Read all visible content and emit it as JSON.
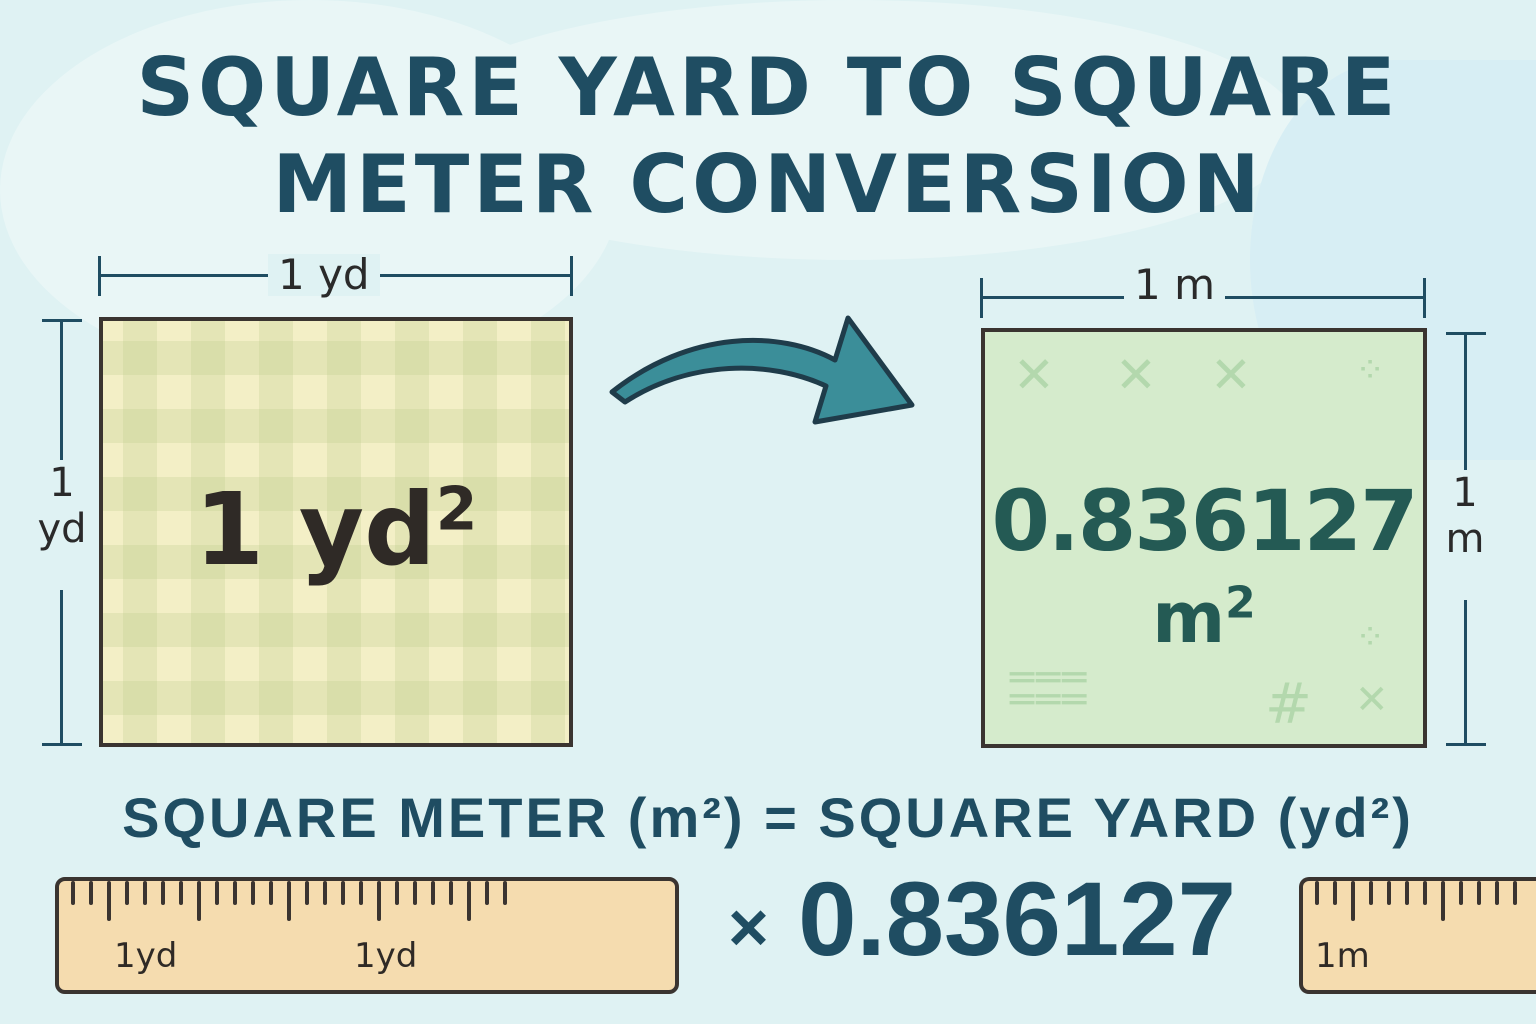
{
  "title": {
    "line1": "SQUARE YARD TO SQUARE",
    "line2": "METER CONVERSION"
  },
  "left_square": {
    "width_label": "1 yd",
    "height_label_num": "1",
    "height_label_unit": "yd",
    "value": "1 yd",
    "exponent": "2",
    "fill_color": "#f3efc6"
  },
  "right_square": {
    "width_label": "1 m",
    "height_label_num": "1",
    "height_label_unit": "m",
    "value": "0.836127",
    "unit": "m",
    "exponent": "2",
    "fill_color": "#d5ebcc"
  },
  "arrow": {
    "icon": "curved-arrow-right",
    "color": "#3b8e99"
  },
  "formula": {
    "text": "SQUARE METER (m²) = SQUARE YARD (yd²)",
    "multiplier_symbol": "×",
    "factor": "0.836127"
  },
  "rulers": {
    "left": {
      "labels": [
        "1yd",
        "1yd"
      ]
    },
    "right": {
      "labels": [
        "1m"
      ]
    }
  },
  "colors": {
    "title": "#1f4d62",
    "background": "#dff2f3",
    "ruler": "#f5dcaf"
  }
}
